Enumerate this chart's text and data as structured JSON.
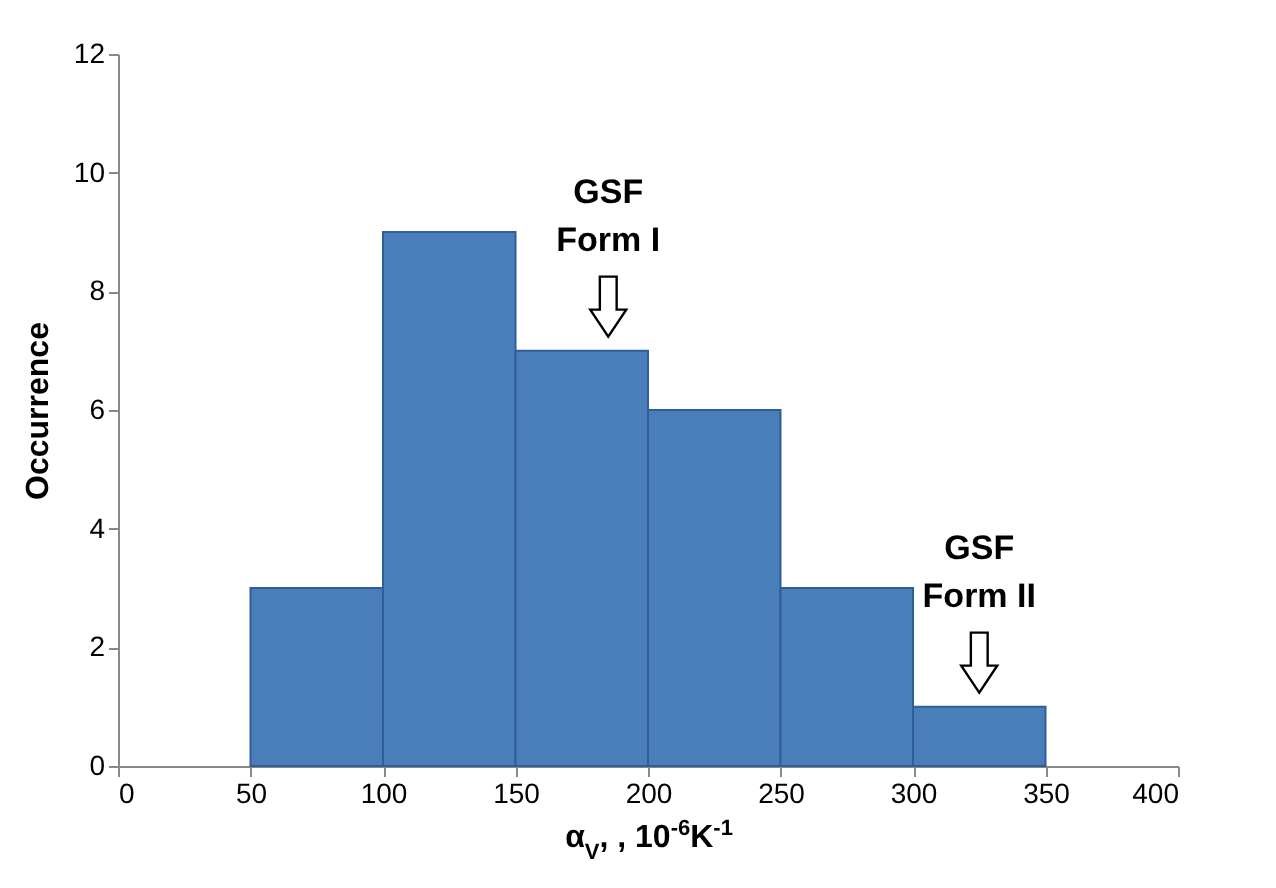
{
  "chart_data": {
    "type": "histogram",
    "xlabel": "α$_{V}$, , 10$^{-6}$K$^{-1}$",
    "ylabel": "Occurrence",
    "bins": [
      50,
      100,
      150,
      200,
      250,
      300,
      350
    ],
    "values": [
      3,
      9,
      7,
      6,
      3,
      1
    ],
    "color": "#4a7ebb",
    "xlim": [
      0,
      400
    ],
    "xticks": [
      0,
      50,
      100,
      150,
      200,
      250,
      300,
      350,
      400
    ],
    "ylim": [
      0,
      12
    ],
    "yticks": [
      0,
      2,
      4,
      6,
      8,
      10,
      12
    ],
    "grid": false,
    "annotations": [
      {
        "text": "GSF\nForm I",
        "x": 185,
        "y": 7
      },
      {
        "text": "GSF\nForm II",
        "x": 325,
        "y": 1
      }
    ]
  }
}
